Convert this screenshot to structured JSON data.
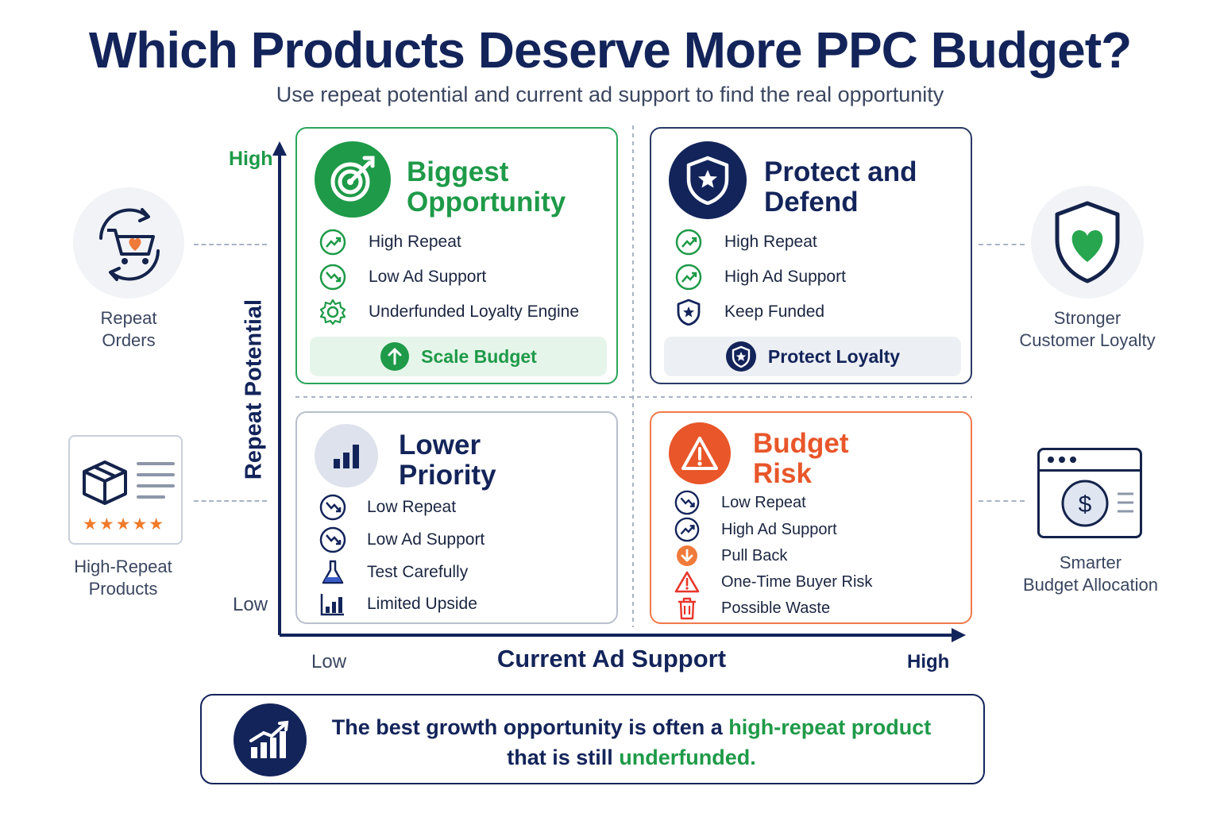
{
  "title": "Which Products Deserve More PPC Budget?",
  "subtitle": "Use repeat potential and current ad support to find the real opportunity",
  "side": {
    "repeat_orders": "Repeat\nOrders",
    "high_repeat_products": "High-Repeat\nProducts",
    "stronger_loyalty": "Stronger\nCustomer Loyalty",
    "smarter_budget": "Smarter\nBudget Allocation",
    "stars": "★★★★★"
  },
  "axes": {
    "y_label": "Repeat Potential",
    "y_high": "High",
    "y_low": "Low",
    "x_label": "Current Ad Support",
    "x_low": "Low",
    "x_high": "High"
  },
  "quadrants": {
    "biggest": {
      "title_line1": "Biggest",
      "title_line2": "Opportunity",
      "rows": [
        "High Repeat",
        "Low Ad Support",
        "Underfunded Loyalty Engine"
      ],
      "action": "Scale Budget"
    },
    "protect": {
      "title_line1": "Protect and",
      "title_line2": "Defend",
      "rows": [
        "High Repeat",
        "High Ad Support",
        "Keep Funded"
      ],
      "action": "Protect Loyalty"
    },
    "lower": {
      "title_line1": "Lower",
      "title_line2": "Priority",
      "rows": [
        "Low Repeat",
        "Low Ad Support",
        "Test Carefully",
        "Limited Upside"
      ]
    },
    "risk": {
      "title_line1": "Budget",
      "title_line2": "Risk",
      "rows": [
        "Low Repeat",
        "High Ad Support",
        "Pull Back",
        "One-Time Buyer Risk",
        "Possible Waste"
      ]
    }
  },
  "bottom": {
    "line1_a": "The best growth opportunity is often a ",
    "line1_b": "high-repeat product",
    "line2_a": "that is still ",
    "line2_b": "underfunded."
  },
  "colors": {
    "navy": "#13245a",
    "green": "#1e9a48",
    "orange": "#e8562a"
  }
}
